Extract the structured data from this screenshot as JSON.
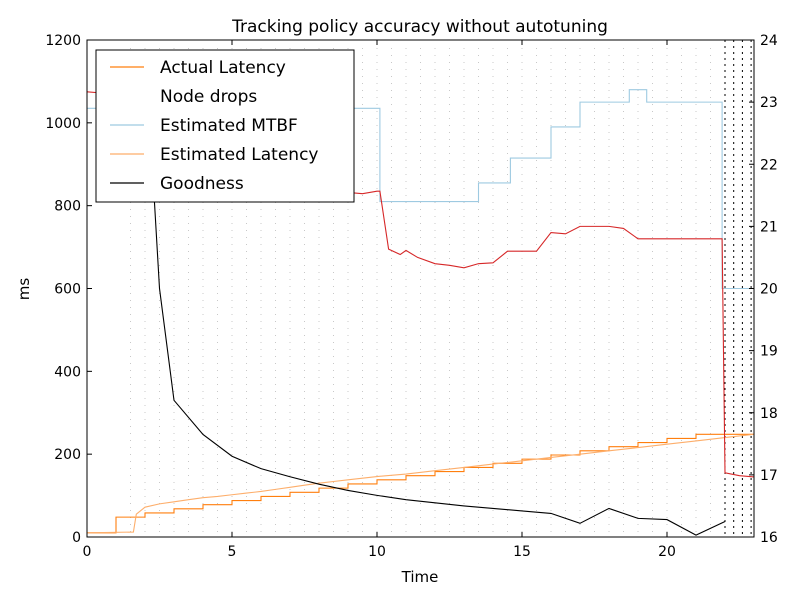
{
  "chart_data": {
    "type": "line",
    "title": "Tracking policy accuracy without autotuning",
    "xlabel": "Time",
    "ylabel": "ms",
    "y2label": "",
    "xlim": [
      0,
      23
    ],
    "ylim": [
      0,
      1200
    ],
    "y2lim": [
      16,
      24
    ],
    "xticks": [
      0,
      5,
      10,
      15,
      20
    ],
    "yticks": [
      0,
      200,
      400,
      600,
      800,
      1000,
      1200
    ],
    "y2ticks": [
      16,
      17,
      18,
      19,
      20,
      21,
      22,
      23,
      24
    ],
    "grid": false,
    "legend_position": "top-left",
    "background_dots_spacing": 0.5,
    "node_drop_times": [
      22.0,
      22.3,
      22.6,
      22.9
    ],
    "series": [
      {
        "name": "Actual Latency",
        "axis": "left",
        "color": "#ff7f0e",
        "step": true,
        "x": [
          0,
          1,
          2,
          3,
          4,
          5,
          6,
          7,
          8,
          9,
          10,
          11,
          12,
          13,
          14,
          15,
          16,
          17,
          18,
          19,
          20,
          21,
          22,
          23
        ],
        "y": [
          10,
          48,
          58,
          68,
          78,
          88,
          98,
          108,
          118,
          128,
          138,
          148,
          158,
          168,
          178,
          188,
          198,
          208,
          218,
          228,
          238,
          248,
          248,
          248
        ]
      },
      {
        "name": "Node drops",
        "axis": "left",
        "color": "#ffffff",
        "step": false,
        "x": [],
        "y": []
      },
      {
        "name": "Estimated MTBF",
        "axis": "right",
        "color": "#9ecae1",
        "step": true,
        "x": [
          0,
          10.1,
          13.5,
          14.6,
          16.0,
          17.0,
          18.7,
          19.3,
          21.9,
          23
        ],
        "y": [
          22.9,
          21.4,
          21.7,
          22.1,
          22.6,
          23.0,
          23.2,
          23.0,
          20.0,
          20.0
        ]
      },
      {
        "name": "Estimated Latency",
        "axis": "left",
        "color": "#fdae6b",
        "step": false,
        "x": [
          0,
          1.6,
          1.7,
          2.0,
          2.5,
          3.0,
          3.5,
          4.0,
          4.5,
          5.0,
          5.5,
          6.0,
          6.5,
          7.0,
          7.5,
          8.0,
          8.5,
          9.0,
          9.5,
          10.0,
          11.0,
          12.0,
          13.0,
          14.0,
          15.0,
          16.0,
          17.0,
          18.0,
          19.0,
          20.0,
          21.0,
          22.0,
          23.0
        ],
        "y": [
          10,
          12,
          55,
          72,
          80,
          85,
          90,
          95,
          98,
          102,
          106,
          110,
          115,
          120,
          125,
          130,
          134,
          138,
          142,
          146,
          152,
          160,
          168,
          176,
          184,
          192,
          200,
          208,
          216,
          224,
          232,
          240,
          248
        ]
      },
      {
        "name": "",
        "axis": "left",
        "color": "#d62728",
        "step": false,
        "x": [
          0,
          0.5,
          1.0,
          1.5,
          1.5,
          1.9,
          2.0,
          2.5,
          3.0,
          3.5,
          4.0,
          4.5,
          5.0,
          5.5,
          5.8,
          6.0,
          6.5,
          7.0,
          7.5,
          8.0,
          8.5,
          9.0,
          9.5,
          10.0,
          10.1,
          10.4,
          10.8,
          11.0,
          11.4,
          12.0,
          12.5,
          13.0,
          13.5,
          14.0,
          14.5,
          15.0,
          15.5,
          16.0,
          16.5,
          17.0,
          17.5,
          18.0,
          18.5,
          19.0,
          20.0,
          21.0,
          21.9,
          22.0,
          22.5,
          23.0
        ],
        "y": [
          1075,
          1072,
          1070,
          1068,
          975,
          950,
          940,
          925,
          910,
          905,
          900,
          895,
          892,
          885,
          898,
          870,
          865,
          858,
          850,
          845,
          840,
          832,
          829,
          835,
          835,
          695,
          682,
          692,
          675,
          660,
          656,
          650,
          660,
          662,
          690,
          690,
          690,
          735,
          732,
          750,
          750,
          750,
          745,
          720,
          720,
          720,
          720,
          155,
          148,
          145
        ]
      },
      {
        "name": "Goodness",
        "axis": "right",
        "color": "#000000",
        "step": false,
        "x": [
          2.2,
          2.5,
          3.0,
          4.0,
          5.0,
          6.0,
          7.0,
          8.0,
          9.0,
          10.0,
          11.0,
          12.0,
          13.0,
          14.0,
          15.0,
          16.0,
          17.0,
          18.0,
          19.0,
          20.0,
          21.0,
          22.0
        ],
        "y": [
          22.4,
          20.0,
          18.2,
          17.65,
          17.3,
          17.1,
          16.97,
          16.85,
          16.75,
          16.67,
          16.6,
          16.55,
          16.5,
          16.46,
          16.42,
          16.38,
          16.22,
          16.46,
          16.3,
          16.28,
          16.03,
          16.25
        ]
      }
    ]
  }
}
